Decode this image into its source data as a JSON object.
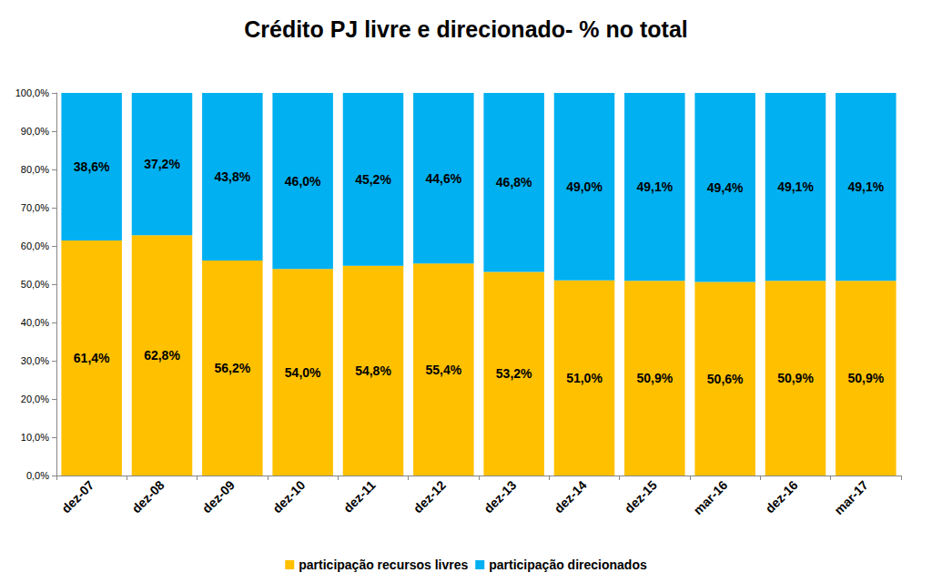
{
  "chart_data": {
    "type": "bar",
    "title": "Crédito PJ livre e direcionado- % no total",
    "categories": [
      "dez-07",
      "dez-08",
      "dez-09",
      "dez-10",
      "dez-11",
      "dez-12",
      "dez-13",
      "dez-14",
      "dez-15",
      "mar-16",
      "dez-16",
      "mar-17"
    ],
    "series": [
      {
        "name": "participação recursos livres",
        "color": "#ffc000",
        "values": [
          61.4,
          62.8,
          56.2,
          54.0,
          54.8,
          55.4,
          53.2,
          51.0,
          50.9,
          50.6,
          50.9,
          50.9
        ],
        "value_labels": [
          "61,4%",
          "62,8%",
          "56,2%",
          "54,0%",
          "54,8%",
          "55,4%",
          "53,2%",
          "51,0%",
          "50,9%",
          "50,6%",
          "50,9%",
          "50,9%"
        ]
      },
      {
        "name": "participação direcionados",
        "color": "#00b0f0",
        "values": [
          38.6,
          37.2,
          43.8,
          46.0,
          45.2,
          44.6,
          46.8,
          49.0,
          49.1,
          49.4,
          49.1,
          49.1
        ],
        "value_labels": [
          "38,6%",
          "37,2%",
          "43,8%",
          "46,0%",
          "45,2%",
          "44,6%",
          "46,8%",
          "49,0%",
          "49,1%",
          "49,4%",
          "49,1%",
          "49,1%"
        ]
      }
    ],
    "ylim": [
      0,
      100
    ],
    "yticks": [
      {
        "value": 0,
        "label": "0,0%"
      },
      {
        "value": 10,
        "label": "10,0%"
      },
      {
        "value": 20,
        "label": "20,0%"
      },
      {
        "value": 30,
        "label": "30,0%"
      },
      {
        "value": 40,
        "label": "40,0%"
      },
      {
        "value": 50,
        "label": "50,0%"
      },
      {
        "value": 60,
        "label": "60,0%"
      },
      {
        "value": 70,
        "label": "70,0%"
      },
      {
        "value": 80,
        "label": "80,0%"
      },
      {
        "value": 90,
        "label": "90,0%"
      },
      {
        "value": 100,
        "label": "100,0%"
      }
    ],
    "stacked": true,
    "data_labels": true,
    "grid": false,
    "legend": "bottom"
  }
}
